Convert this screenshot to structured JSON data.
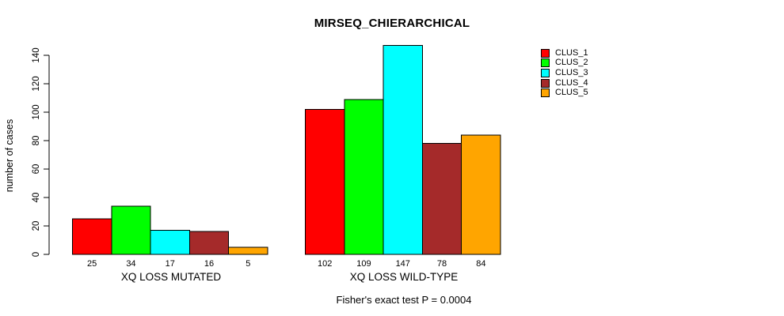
{
  "chart_data": {
    "type": "bar",
    "title": "MIRSEQ_CHIERARCHICAL",
    "ylabel": "number of cases",
    "xlabel": "",
    "categories": [
      "XQ LOSS MUTATED",
      "XQ LOSS WILD-TYPE"
    ],
    "series": [
      {
        "name": "CLUS_1",
        "color": "#ff0000",
        "values": [
          25,
          102
        ]
      },
      {
        "name": "CLUS_2",
        "color": "#00ff00",
        "values": [
          34,
          109
        ]
      },
      {
        "name": "CLUS_3",
        "color": "#00ffff",
        "values": [
          17,
          147
        ]
      },
      {
        "name": "CLUS_4",
        "color": "#a52a2a",
        "values": [
          16,
          78
        ]
      },
      {
        "name": "CLUS_5",
        "color": "#ffa500",
        "values": [
          5,
          84
        ]
      }
    ],
    "ylim": [
      0,
      140
    ],
    "yticks": [
      0,
      20,
      40,
      60,
      80,
      100,
      120,
      140
    ],
    "grid": false,
    "legend_position": "top-right",
    "bar_border_color": "#000000",
    "background_color": "#ffffff",
    "bar_value_labels_shown": true,
    "annotations": [
      "Fisher's exact test P = 0.0004"
    ]
  }
}
